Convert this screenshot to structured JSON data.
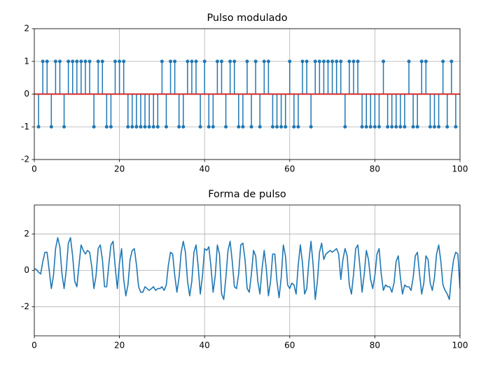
{
  "chart_data": [
    {
      "type": "stem",
      "title": "Pulso modulado",
      "x": [
        1,
        2,
        3,
        4,
        5,
        6,
        7,
        8,
        9,
        10,
        11,
        12,
        13,
        14,
        15,
        16,
        17,
        18,
        19,
        20,
        21,
        22,
        23,
        24,
        25,
        26,
        27,
        28,
        29,
        30,
        31,
        32,
        33,
        34,
        35,
        36,
        37,
        38,
        39,
        40,
        41,
        42,
        43,
        44,
        45,
        46,
        47,
        48,
        49,
        50,
        51,
        52,
        53,
        54,
        55,
        56,
        57,
        58,
        59,
        60,
        61,
        62,
        63,
        64,
        65,
        66,
        67,
        68,
        69,
        70,
        71,
        72,
        73,
        74,
        75,
        76,
        77,
        78,
        79,
        80,
        81,
        82,
        83,
        84,
        85,
        86,
        87,
        88,
        89,
        90,
        91,
        92,
        93,
        94,
        95,
        96,
        97,
        98,
        99
      ],
      "values": [
        -1,
        1,
        1,
        -1,
        1,
        1,
        -1,
        1,
        1,
        1,
        1,
        1,
        1,
        -1,
        1,
        1,
        -1,
        -1,
        1,
        1,
        1,
        -1,
        -1,
        -1,
        -1,
        -1,
        -1,
        -1,
        -1,
        1,
        -1,
        1,
        1,
        -1,
        -1,
        1,
        1,
        1,
        -1,
        1,
        -1,
        -1,
        1,
        1,
        -1,
        1,
        1,
        -1,
        -1,
        1,
        -1,
        1,
        -1,
        1,
        1,
        -1,
        -1,
        -1,
        -1,
        1,
        -1,
        -1,
        1,
        1,
        -1,
        1,
        1,
        1,
        1,
        1,
        1,
        1,
        -1,
        1,
        1,
        1,
        -1,
        -1,
        -1,
        -1,
        -1,
        1,
        -1,
        -1,
        -1,
        -1,
        -1,
        1,
        -1,
        -1,
        1,
        1,
        -1,
        -1,
        -1,
        1,
        -1,
        1,
        -1
      ],
      "color": "#1f77b4",
      "baseline_color": "#d62728",
      "xlim": [
        0,
        100
      ],
      "xticks": [
        0,
        20,
        40,
        60,
        80,
        100
      ],
      "ylim": [
        -2,
        2
      ],
      "yticks": [
        -2,
        -1,
        0,
        1,
        2
      ],
      "grid": true
    },
    {
      "type": "line",
      "title": "Forma de pulso",
      "x": [
        0,
        0.5,
        1,
        1.5,
        2,
        2.5,
        3,
        3.5,
        4,
        4.5,
        5,
        5.5,
        6,
        6.5,
        7,
        7.5,
        8,
        8.5,
        9,
        9.5,
        10,
        10.5,
        11,
        11.5,
        12,
        12.5,
        13,
        13.5,
        14,
        14.5,
        15,
        15.5,
        16,
        16.5,
        17,
        17.5,
        18,
        18.5,
        19,
        19.5,
        20,
        20.5,
        21,
        21.5,
        22,
        22.5,
        23,
        23.5,
        24,
        24.5,
        25,
        25.5,
        26,
        26.5,
        27,
        27.5,
        28,
        28.5,
        29,
        29.5,
        30,
        30.5,
        31,
        31.5,
        32,
        32.5,
        33,
        33.5,
        34,
        34.5,
        35,
        35.5,
        36,
        36.5,
        37,
        37.5,
        38,
        38.5,
        39,
        39.5,
        40,
        40.5,
        41,
        41.5,
        42,
        42.5,
        43,
        43.5,
        44,
        44.5,
        45,
        45.5,
        46,
        46.5,
        47,
        47.5,
        48,
        48.5,
        49,
        49.5,
        50,
        50.5,
        51,
        51.5,
        52,
        52.5,
        53,
        53.5,
        54,
        54.5,
        55,
        55.5,
        56,
        56.5,
        57,
        57.5,
        58,
        58.5,
        59,
        59.5,
        60,
        60.5,
        61,
        61.5,
        62,
        62.5,
        63,
        63.5,
        64,
        64.5,
        65,
        65.5,
        66,
        66.5,
        67,
        67.5,
        68,
        68.5,
        69,
        69.5,
        70,
        70.5,
        71,
        71.5,
        72,
        72.5,
        73,
        73.5,
        74,
        74.5,
        75,
        75.5,
        76,
        76.5,
        77,
        77.5,
        78,
        78.5,
        79,
        79.5,
        80,
        80.5,
        81,
        81.5,
        82,
        82.5,
        83,
        83.5,
        84,
        84.5,
        85,
        85.5,
        86,
        86.5,
        87,
        87.5,
        88,
        88.5,
        89,
        89.5,
        90,
        90.5,
        91,
        91.5,
        92,
        92.5,
        93,
        93.5,
        94,
        94.5,
        95,
        95.5,
        96,
        96.5,
        97,
        97.5,
        98,
        98.5,
        99,
        99.5,
        100
      ],
      "values": [
        0.1,
        0.05,
        -0.1,
        -0.2,
        0.5,
        1.0,
        1.0,
        0.0,
        -1.0,
        -0.3,
        1.2,
        1.8,
        1.3,
        -0.2,
        -1.0,
        0.0,
        1.5,
        1.8,
        0.8,
        -0.6,
        -0.9,
        0.3,
        1.4,
        1.1,
        0.9,
        1.1,
        1.0,
        0.2,
        -1.0,
        -0.3,
        1.2,
        1.4,
        0.6,
        -0.9,
        -0.9,
        0.3,
        1.4,
        1.6,
        0.2,
        -1.0,
        0.4,
        1.2,
        -0.5,
        -1.4,
        -0.8,
        0.6,
        1.1,
        1.2,
        0.3,
        -0.9,
        -1.2,
        -1.2,
        -0.9,
        -1.0,
        -1.1,
        -1.0,
        -0.9,
        -1.1,
        -1.0,
        -1.0,
        -0.9,
        -1.1,
        -0.8,
        0.3,
        1.0,
        0.9,
        -0.3,
        -1.2,
        -0.4,
        1.0,
        1.6,
        1.0,
        -0.6,
        -1.4,
        -0.6,
        1.0,
        1.4,
        0.2,
        -1.3,
        -0.3,
        1.2,
        1.1,
        1.3,
        0.2,
        -1.2,
        -0.3,
        1.4,
        0.9,
        -1.3,
        -1.6,
        -0.4,
        1.1,
        1.6,
        0.5,
        -0.9,
        -1.0,
        -0.2,
        1.4,
        1.5,
        0.6,
        -1.0,
        -1.2,
        -0.2,
        1.1,
        0.8,
        -0.6,
        -1.3,
        0.1,
        1.1,
        0.1,
        -1.4,
        -0.6,
        0.9,
        0.9,
        -0.6,
        -1.5,
        -0.4,
        1.4,
        0.8,
        -0.8,
        -1.0,
        -0.7,
        -0.8,
        -1.3,
        0.3,
        1.4,
        0.4,
        -1.3,
        -1.0,
        0.5,
        1.6,
        0.3,
        -1.6,
        -0.6,
        1.0,
        1.5,
        0.6,
        0.9,
        1.0,
        1.1,
        1.0,
        1.1,
        1.2,
        0.9,
        -0.5,
        0.6,
        1.2,
        0.8,
        -0.8,
        -1.3,
        -0.2,
        1.2,
        1.4,
        0.2,
        -1.2,
        -0.2,
        1.1,
        0.6,
        -0.5,
        -1.0,
        -0.3,
        0.9,
        1.2,
        -0.2,
        -1.1,
        -0.8,
        -0.9,
        -0.9,
        -1.2,
        -0.7,
        0.5,
        0.8,
        -0.4,
        -1.3,
        -0.8,
        -0.9,
        -0.9,
        -1.1,
        -0.4,
        0.8,
        1.0,
        -0.2,
        -1.3,
        -0.7,
        0.8,
        0.6,
        -0.7,
        -1.1,
        -0.4,
        0.9,
        1.4,
        0.5,
        -0.8,
        -1.1,
        -1.3,
        -1.6,
        -0.3,
        0.6,
        1.0,
        0.9,
        -1.0
      ],
      "color": "#1f77b4",
      "xlim": [
        0,
        100
      ],
      "xticks": [
        0,
        20,
        40,
        60,
        80,
        100
      ],
      "ylim": [
        -3.6,
        3.6
      ],
      "yticks": [
        -2,
        0,
        2
      ],
      "grid": true
    }
  ]
}
